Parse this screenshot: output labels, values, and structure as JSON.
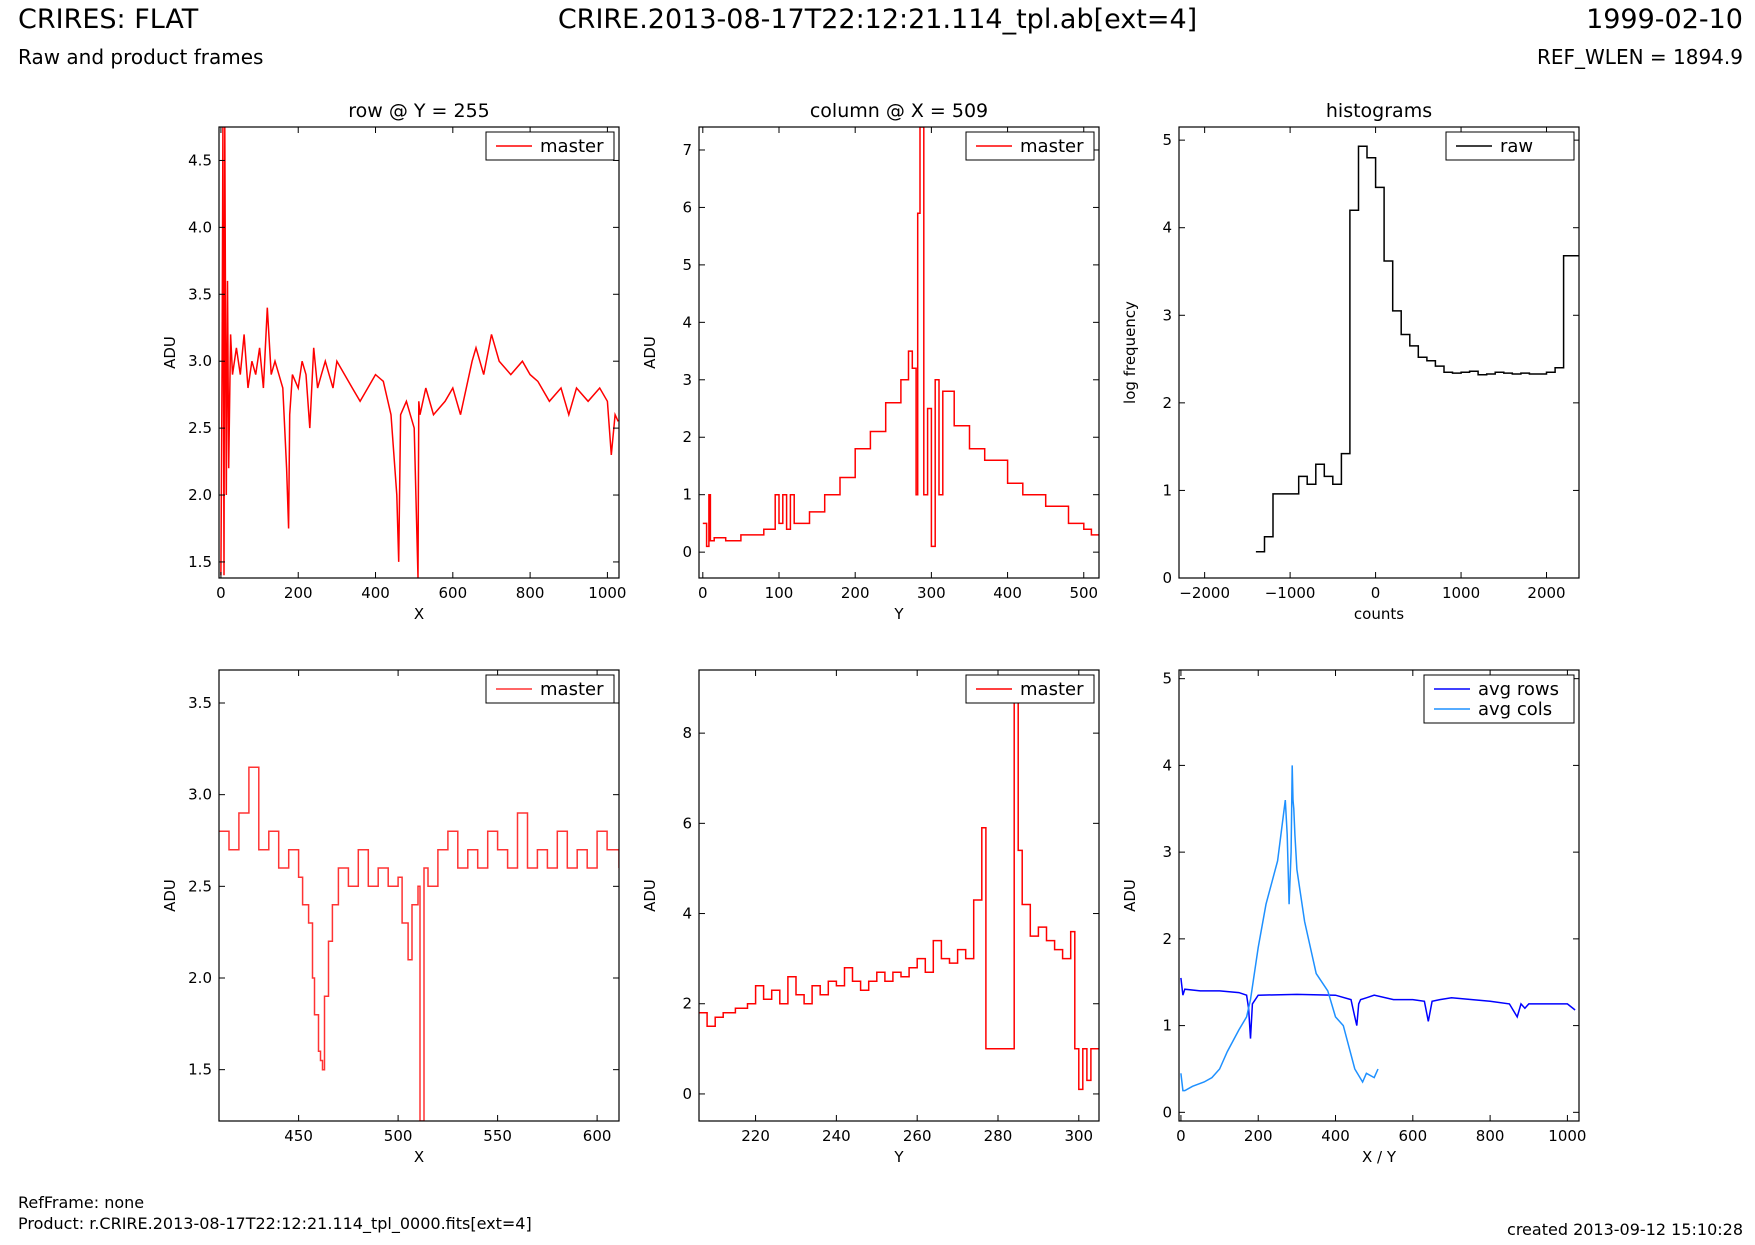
{
  "header": {
    "left_title": "CRIRES: FLAT",
    "left_subtitle": "Raw and product frames",
    "center_title": "CRIRE.2013-08-17T22:12:21.114_tpl.ab[ext=4]",
    "right_title": "1999-02-10",
    "right_subtitle": "REF_WLEN = 1894.9"
  },
  "footer": {
    "ref_frame": "RefFrame: none",
    "product": "Product: r.CRIRE.2013-08-17T22:12:21.114_tpl_0000.fits[ext=4]",
    "created": "created 2013-09-12 15:10:28"
  },
  "colors": {
    "red": "#ff0000",
    "dark_red": "#ff3333",
    "blue": "#0000ff",
    "light_blue": "#1e90ff",
    "black": "#000000"
  },
  "chart_data": [
    {
      "id": "row",
      "type": "line",
      "title": "row @ Y = 255",
      "xlabel": "X",
      "ylabel": "ADU",
      "xlim": [
        -5,
        1030
      ],
      "ylim": [
        1.38,
        4.75
      ],
      "xticks": [
        0,
        200,
        400,
        600,
        800,
        1000
      ],
      "yticks": [
        1.5,
        2.0,
        2.5,
        3.0,
        3.5,
        4.0,
        4.5
      ],
      "ytick_format": 1,
      "legend": "top-right",
      "series": [
        {
          "name": "master",
          "color": "#ff0000",
          "step": false,
          "x": [
            0,
            3,
            5,
            8,
            10,
            12,
            14,
            17,
            20,
            25,
            30,
            40,
            50,
            60,
            70,
            80,
            90,
            100,
            110,
            120,
            130,
            140,
            150,
            160,
            170,
            175,
            178,
            185,
            200,
            210,
            220,
            230,
            240,
            250,
            260,
            270,
            280,
            290,
            300,
            320,
            340,
            360,
            380,
            400,
            420,
            440,
            455,
            460,
            465,
            480,
            500,
            510,
            512,
            515,
            530,
            550,
            580,
            600,
            620,
            650,
            660,
            680,
            700,
            720,
            750,
            780,
            800,
            820,
            850,
            880,
            900,
            920,
            950,
            980,
            1000,
            1010,
            1020,
            1028
          ],
          "y": [
            1.4,
            3.0,
            4.75,
            1.4,
            4.75,
            3.2,
            2.0,
            3.6,
            2.2,
            3.2,
            2.9,
            3.1,
            2.9,
            3.2,
            2.8,
            3.0,
            2.9,
            3.1,
            2.8,
            3.4,
            2.9,
            3.0,
            2.9,
            2.8,
            2.2,
            1.75,
            2.6,
            2.9,
            2.8,
            3.0,
            2.9,
            2.5,
            3.1,
            2.8,
            2.9,
            3.0,
            2.9,
            2.8,
            3.0,
            2.9,
            2.8,
            2.7,
            2.8,
            2.9,
            2.85,
            2.6,
            2.0,
            1.5,
            2.6,
            2.7,
            2.5,
            1.38,
            2.7,
            2.6,
            2.8,
            2.6,
            2.7,
            2.8,
            2.6,
            3.0,
            3.1,
            2.9,
            3.2,
            3.0,
            2.9,
            3.0,
            2.9,
            2.85,
            2.7,
            2.8,
            2.6,
            2.8,
            2.7,
            2.8,
            2.7,
            2.3,
            2.6,
            2.55
          ]
        }
      ]
    },
    {
      "id": "column",
      "type": "line",
      "title": "column @ X = 509",
      "xlabel": "Y",
      "ylabel": "ADU",
      "xlim": [
        -5,
        520
      ],
      "ylim": [
        -0.45,
        7.4
      ],
      "xticks": [
        0,
        100,
        200,
        300,
        400,
        500
      ],
      "yticks": [
        0,
        1,
        2,
        3,
        4,
        5,
        6,
        7
      ],
      "ytick_format": 0,
      "legend": "top-right",
      "series": [
        {
          "name": "master",
          "color": "#ff0000",
          "step": true,
          "x": [
            0,
            5,
            8,
            10,
            15,
            30,
            50,
            80,
            95,
            100,
            105,
            110,
            115,
            120,
            140,
            160,
            180,
            200,
            220,
            240,
            260,
            270,
            275,
            280,
            282,
            285,
            290,
            295,
            300,
            305,
            310,
            315,
            330,
            350,
            370,
            400,
            420,
            450,
            480,
            500,
            510
          ],
          "y": [
            0.5,
            0.1,
            1.0,
            0.2,
            0.25,
            0.2,
            0.3,
            0.4,
            1.0,
            0.5,
            1.0,
            0.4,
            1.0,
            0.5,
            0.7,
            1.0,
            1.3,
            1.8,
            2.1,
            2.6,
            3.0,
            3.5,
            3.2,
            1.0,
            5.9,
            7.4,
            1.0,
            2.5,
            0.1,
            3.0,
            1.0,
            2.8,
            2.2,
            1.8,
            1.6,
            1.2,
            1.0,
            0.8,
            0.5,
            0.4,
            0.3
          ]
        }
      ]
    },
    {
      "id": "hist",
      "type": "line",
      "title": "histograms",
      "xlabel": "counts",
      "ylabel": "log frequency",
      "xlim": [
        -2300,
        2380
      ],
      "ylim": [
        0,
        5.15
      ],
      "xticks": [
        -2000,
        -1000,
        0,
        1000,
        2000
      ],
      "xtick_labels": [
        "−2000",
        "−1000",
        "0",
        "1000",
        "2000"
      ],
      "yticks": [
        0,
        1,
        2,
        3,
        4,
        5
      ],
      "ytick_format": 0,
      "legend": "top-right",
      "series": [
        {
          "name": "raw",
          "color": "#000000",
          "step": true,
          "x": [
            -1400,
            -1300,
            -1200,
            -1000,
            -900,
            -800,
            -700,
            -600,
            -500,
            -400,
            -300,
            -200,
            -100,
            0,
            100,
            200,
            300,
            400,
            500,
            600,
            700,
            800,
            900,
            1000,
            1100,
            1200,
            1300,
            1400,
            1500,
            1600,
            1700,
            1800,
            1900,
            2000,
            2100,
            2200,
            2300
          ],
          "y": [
            0.3,
            0.47,
            0.96,
            0.96,
            1.16,
            1.07,
            1.3,
            1.16,
            1.07,
            1.42,
            4.2,
            4.93,
            4.8,
            4.46,
            3.62,
            3.05,
            2.78,
            2.65,
            2.52,
            2.48,
            2.42,
            2.35,
            2.34,
            2.35,
            2.36,
            2.32,
            2.33,
            2.35,
            2.34,
            2.33,
            2.34,
            2.33,
            2.33,
            2.35,
            2.4,
            3.68,
            3.68
          ]
        }
      ]
    },
    {
      "id": "row-zoom",
      "type": "line",
      "title": "",
      "xlabel": "X",
      "ylabel": "ADU",
      "xlim": [
        410,
        611
      ],
      "ylim": [
        1.22,
        3.68
      ],
      "xticks": [
        450,
        500,
        550,
        600
      ],
      "yticks": [
        1.5,
        2.0,
        2.5,
        3.0,
        3.5
      ],
      "ytick_format": 1,
      "legend": "top-right",
      "series": [
        {
          "name": "master",
          "color": "#ff3333",
          "step": true,
          "x": [
            410,
            415,
            420,
            425,
            430,
            435,
            440,
            445,
            450,
            452,
            455,
            457,
            458,
            460,
            461,
            462,
            463,
            465,
            467,
            470,
            475,
            480,
            485,
            490,
            495,
            500,
            502,
            505,
            507,
            510,
            511,
            513,
            515,
            520,
            525,
            530,
            535,
            540,
            545,
            550,
            555,
            560,
            565,
            570,
            575,
            580,
            585,
            590,
            595,
            600,
            605,
            611
          ],
          "y": [
            2.8,
            2.7,
            2.9,
            3.15,
            2.7,
            2.8,
            2.6,
            2.7,
            2.55,
            2.4,
            2.3,
            2.0,
            1.8,
            1.6,
            1.55,
            1.5,
            1.9,
            2.2,
            2.4,
            2.6,
            2.5,
            2.7,
            2.5,
            2.6,
            2.5,
            2.55,
            2.3,
            2.1,
            2.4,
            2.5,
            1.22,
            2.6,
            2.5,
            2.7,
            2.8,
            2.6,
            2.7,
            2.6,
            2.8,
            2.7,
            2.6,
            2.9,
            2.6,
            2.7,
            2.6,
            2.8,
            2.6,
            2.7,
            2.6,
            2.8,
            2.7,
            2.6
          ]
        }
      ]
    },
    {
      "id": "column-zoom",
      "type": "line",
      "title": "",
      "xlabel": "Y",
      "ylabel": "ADU",
      "xlim": [
        206,
        305
      ],
      "ylim": [
        -0.6,
        9.4
      ],
      "xticks": [
        220,
        240,
        260,
        280,
        300
      ],
      "yticks": [
        0,
        2,
        4,
        6,
        8
      ],
      "ytick_format": 0,
      "legend": "top-right",
      "series": [
        {
          "name": "master",
          "color": "#ff0000",
          "step": true,
          "x": [
            206,
            208,
            210,
            212,
            215,
            218,
            220,
            222,
            224,
            226,
            228,
            230,
            232,
            234,
            236,
            238,
            240,
            242,
            244,
            246,
            248,
            250,
            252,
            254,
            256,
            258,
            260,
            262,
            264,
            266,
            268,
            270,
            272,
            274,
            276,
            277,
            284,
            285,
            286,
            288,
            290,
            292,
            294,
            296,
            298,
            299,
            300,
            301,
            302,
            303,
            305
          ],
          "y": [
            1.8,
            1.5,
            1.7,
            1.8,
            1.9,
            2.0,
            2.4,
            2.1,
            2.3,
            2.0,
            2.6,
            2.2,
            2.0,
            2.4,
            2.2,
            2.5,
            2.4,
            2.8,
            2.5,
            2.3,
            2.5,
            2.7,
            2.5,
            2.7,
            2.6,
            2.8,
            3.0,
            2.7,
            3.4,
            3.0,
            2.9,
            3.2,
            3.0,
            4.3,
            5.9,
            1.0,
            8.7,
            5.4,
            4.2,
            3.5,
            3.7,
            3.4,
            3.2,
            3.0,
            3.6,
            1.0,
            0.1,
            1.0,
            0.3,
            1.0,
            1.0
          ]
        }
      ]
    },
    {
      "id": "avg",
      "type": "line",
      "title": "",
      "xlabel": "X / Y",
      "ylabel": "ADU",
      "xlim": [
        -5,
        1030
      ],
      "ylim": [
        -0.1,
        5.1
      ],
      "xticks": [
        0,
        200,
        400,
        600,
        800,
        1000
      ],
      "yticks": [
        0,
        1,
        2,
        3,
        4,
        5
      ],
      "ytick_format": 0,
      "legend": "top-right",
      "series": [
        {
          "name": "avg rows",
          "color": "#0000ff",
          "step": false,
          "x": [
            0,
            5,
            10,
            50,
            100,
            150,
            170,
            175,
            180,
            185,
            200,
            300,
            400,
            440,
            450,
            455,
            460,
            465,
            480,
            500,
            550,
            600,
            630,
            640,
            650,
            670,
            700,
            800,
            850,
            870,
            880,
            890,
            900,
            950,
            1000,
            1020
          ],
          "y": [
            1.55,
            1.35,
            1.42,
            1.4,
            1.4,
            1.38,
            1.35,
            1.2,
            0.85,
            1.25,
            1.35,
            1.36,
            1.35,
            1.3,
            1.1,
            1.0,
            1.25,
            1.3,
            1.32,
            1.35,
            1.3,
            1.3,
            1.28,
            1.05,
            1.28,
            1.3,
            1.32,
            1.28,
            1.25,
            1.1,
            1.25,
            1.2,
            1.25,
            1.25,
            1.25,
            1.18
          ]
        },
        {
          "name": "avg cols",
          "color": "#1e90ff",
          "step": false,
          "x": [
            0,
            5,
            10,
            30,
            60,
            80,
            100,
            120,
            150,
            170,
            180,
            200,
            220,
            250,
            270,
            275,
            280,
            285,
            288,
            290,
            292,
            295,
            300,
            320,
            350,
            380,
            400,
            420,
            450,
            470,
            480,
            500,
            510
          ],
          "y": [
            0.45,
            0.25,
            0.25,
            0.3,
            0.35,
            0.4,
            0.5,
            0.7,
            0.95,
            1.1,
            1.3,
            1.9,
            2.4,
            2.9,
            3.6,
            3.2,
            2.4,
            3.0,
            4.0,
            3.6,
            3.5,
            3.2,
            2.8,
            2.2,
            1.6,
            1.4,
            1.1,
            1.0,
            0.5,
            0.35,
            0.45,
            0.4,
            0.5
          ]
        }
      ]
    }
  ]
}
